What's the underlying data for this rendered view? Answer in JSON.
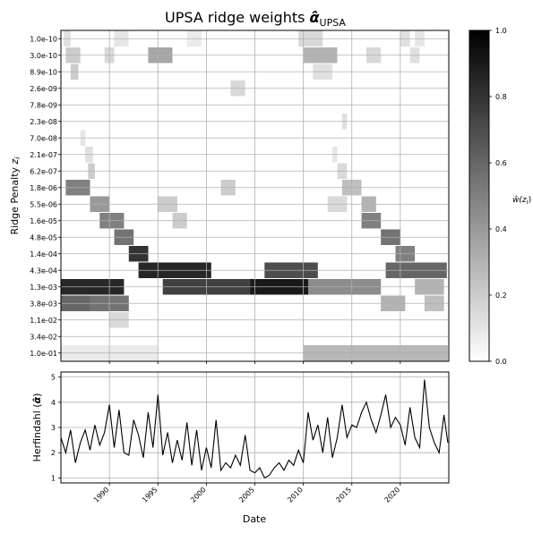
{
  "chart_data": [
    {
      "type": "heatmap",
      "title_main": "UPSA ridge weights ",
      "title_symbol": "α̂",
      "title_sub": "UPSA",
      "ylabel_main": "Ridge Penalty ",
      "ylabel_symbol": "z",
      "ylabel_sub": "i",
      "y_categories": [
        "1.0e-10",
        "3.0e-10",
        "8.9e-10",
        "2.6e-09",
        "7.8e-09",
        "2.3e-08",
        "7.0e-08",
        "2.1e-07",
        "6.2e-07",
        "1.8e-06",
        "5.5e-06",
        "1.6e-05",
        "4.8e-05",
        "1.4e-04",
        "4.3e-04",
        "1.3e-03",
        "3.8e-03",
        "1.1e-02",
        "3.4e-02",
        "1.0e-01"
      ],
      "x_range": [
        1985,
        2025
      ],
      "colorbar": {
        "label_main": "ŵ(z",
        "label_sub": "i",
        "label_end": ")",
        "range": [
          0.0,
          1.0
        ],
        "ticks": [
          "0.0",
          "0.2",
          "0.4",
          "0.6",
          "0.8",
          "1.0"
        ],
        "colormap": "Greys"
      },
      "weights_by_row": [
        {
          "row": "1.0e-10",
          "segments": [
            [
              1985.3,
              1986.0,
              0.12
            ],
            [
              1990.5,
              1992.0,
              0.1
            ],
            [
              1998.0,
              1999.5,
              0.08
            ],
            [
              2009.5,
              2012.0,
              0.15
            ],
            [
              2020.0,
              2021.0,
              0.12
            ],
            [
              2021.5,
              2022.5,
              0.1
            ]
          ]
        },
        {
          "row": "3.0e-10",
          "segments": [
            [
              1985.5,
              1987.0,
              0.2
            ],
            [
              1989.5,
              1990.5,
              0.15
            ],
            [
              1994.0,
              1996.5,
              0.35
            ],
            [
              2010.0,
              2013.5,
              0.3
            ],
            [
              2016.5,
              2018.0,
              0.15
            ],
            [
              2021.0,
              2022.0,
              0.12
            ]
          ]
        },
        {
          "row": "8.9e-10",
          "segments": [
            [
              1986.0,
              1986.8,
              0.2
            ],
            [
              2011.0,
              2013.0,
              0.12
            ]
          ]
        },
        {
          "row": "2.6e-09",
          "segments": [
            [
              2002.5,
              2004.0,
              0.15
            ]
          ]
        },
        {
          "row": "7.8e-09",
          "segments": []
        },
        {
          "row": "2.3e-08",
          "segments": [
            [
              2014.0,
              2014.5,
              0.12
            ]
          ]
        },
        {
          "row": "7.0e-08",
          "segments": [
            [
              1987.0,
              1987.5,
              0.1
            ]
          ]
        },
        {
          "row": "2.1e-07",
          "segments": [
            [
              1987.5,
              1988.3,
              0.12
            ],
            [
              2013.0,
              2013.5,
              0.1
            ]
          ]
        },
        {
          "row": "6.2e-07",
          "segments": [
            [
              1987.8,
              1988.5,
              0.2
            ],
            [
              2013.5,
              2014.5,
              0.15
            ]
          ]
        },
        {
          "row": "1.8e-06",
          "segments": [
            [
              1985.5,
              1988.0,
              0.5
            ],
            [
              2001.5,
              2003.0,
              0.2
            ],
            [
              2014.0,
              2016.0,
              0.25
            ]
          ]
        },
        {
          "row": "5.5e-06",
          "segments": [
            [
              1988.0,
              1990.0,
              0.4
            ],
            [
              1995.0,
              1997.0,
              0.2
            ],
            [
              2012.5,
              2014.5,
              0.15
            ],
            [
              2016.0,
              2017.5,
              0.3
            ]
          ]
        },
        {
          "row": "1.6e-05",
          "segments": [
            [
              1989.0,
              1991.5,
              0.5
            ],
            [
              1996.5,
              1998.0,
              0.2
            ],
            [
              2016.0,
              2018.0,
              0.5
            ]
          ]
        },
        {
          "row": "4.8e-05",
          "segments": [
            [
              1990.5,
              1992.5,
              0.55
            ],
            [
              2018.0,
              2020.0,
              0.55
            ]
          ]
        },
        {
          "row": "1.4e-04",
          "segments": [
            [
              1992.0,
              1994.0,
              0.8
            ],
            [
              2019.5,
              2021.5,
              0.5
            ]
          ]
        },
        {
          "row": "4.3e-04",
          "segments": [
            [
              1993.0,
              2000.5,
              0.85
            ],
            [
              2006.0,
              2011.5,
              0.7
            ],
            [
              2018.5,
              2024.8,
              0.6
            ]
          ]
        },
        {
          "row": "1.3e-03",
          "segments": [
            [
              1985.0,
              1991.5,
              0.85
            ],
            [
              1995.5,
              2004.5,
              0.75
            ],
            [
              2004.5,
              2010.5,
              0.9
            ],
            [
              2010.5,
              2018.0,
              0.45
            ],
            [
              2021.5,
              2024.5,
              0.3
            ]
          ]
        },
        {
          "row": "3.8e-03",
          "segments": [
            [
              1985.0,
              1988.0,
              0.6
            ],
            [
              1988.0,
              1992.0,
              0.55
            ],
            [
              2018.0,
              2020.5,
              0.3
            ],
            [
              2022.5,
              2024.5,
              0.25
            ]
          ]
        },
        {
          "row": "1.1e-02",
          "segments": [
            [
              1990.0,
              1992.0,
              0.15
            ]
          ]
        },
        {
          "row": "3.4e-02",
          "segments": []
        },
        {
          "row": "1.0e-01",
          "segments": [
            [
              1985.0,
              1995.0,
              0.08
            ],
            [
              2010.0,
              2024.9,
              0.28
            ]
          ]
        }
      ]
    },
    {
      "type": "line",
      "xlabel": "Date",
      "ylabel_main": "Herfindahl (",
      "ylabel_symbol": "α̂",
      "ylabel_end": ")",
      "x_range": [
        1985,
        2025
      ],
      "x_ticks": [
        "1990",
        "1995",
        "2000",
        "2005",
        "2010",
        "2015",
        "2020"
      ],
      "ylim": [
        0.8,
        5.2
      ],
      "y_ticks": [
        "1",
        "2",
        "3",
        "4",
        "5"
      ],
      "x": [
        1985.0,
        1985.5,
        1986.0,
        1986.5,
        1987.0,
        1987.5,
        1988.0,
        1988.5,
        1989.0,
        1989.5,
        1990.0,
        1990.5,
        1991.0,
        1991.5,
        1992.0,
        1992.5,
        1993.0,
        1993.5,
        1994.0,
        1994.5,
        1995.0,
        1995.5,
        1996.0,
        1996.5,
        1997.0,
        1997.5,
        1998.0,
        1998.5,
        1999.0,
        1999.5,
        2000.0,
        2000.5,
        2001.0,
        2001.5,
        2002.0,
        2002.5,
        2003.0,
        2003.5,
        2004.0,
        2004.5,
        2005.0,
        2005.5,
        2006.0,
        2006.5,
        2007.0,
        2007.5,
        2008.0,
        2008.5,
        2009.0,
        2009.5,
        2010.0,
        2010.5,
        2011.0,
        2011.5,
        2012.0,
        2012.5,
        2013.0,
        2013.5,
        2014.0,
        2014.5,
        2015.0,
        2015.5,
        2016.0,
        2016.5,
        2017.0,
        2017.5,
        2018.0,
        2018.5,
        2019.0,
        2019.5,
        2020.0,
        2020.5,
        2021.0,
        2021.5,
        2022.0,
        2022.5,
        2023.0,
        2023.5,
        2024.0,
        2024.5,
        2024.9
      ],
      "y": [
        2.6,
        2.0,
        2.9,
        1.6,
        2.4,
        2.9,
        2.1,
        3.1,
        2.3,
        2.8,
        3.9,
        2.2,
        3.7,
        2.0,
        1.9,
        3.3,
        2.7,
        1.8,
        3.6,
        2.2,
        4.3,
        1.9,
        2.8,
        1.6,
        2.5,
        1.7,
        3.2,
        1.5,
        2.9,
        1.3,
        2.2,
        1.4,
        3.3,
        1.3,
        1.6,
        1.4,
        1.9,
        1.5,
        2.7,
        1.3,
        1.2,
        1.4,
        1.0,
        1.1,
        1.4,
        1.6,
        1.3,
        1.7,
        1.5,
        2.1,
        1.6,
        3.6,
        2.5,
        3.1,
        2.0,
        3.4,
        1.8,
        2.6,
        3.9,
        2.6,
        3.1,
        3.0,
        3.6,
        4.0,
        3.3,
        2.8,
        3.5,
        4.3,
        3.0,
        3.4,
        3.1,
        2.3,
        3.8,
        2.6,
        2.2,
        4.9,
        3.0,
        2.4,
        2.0,
        3.5,
        2.4
      ]
    }
  ]
}
